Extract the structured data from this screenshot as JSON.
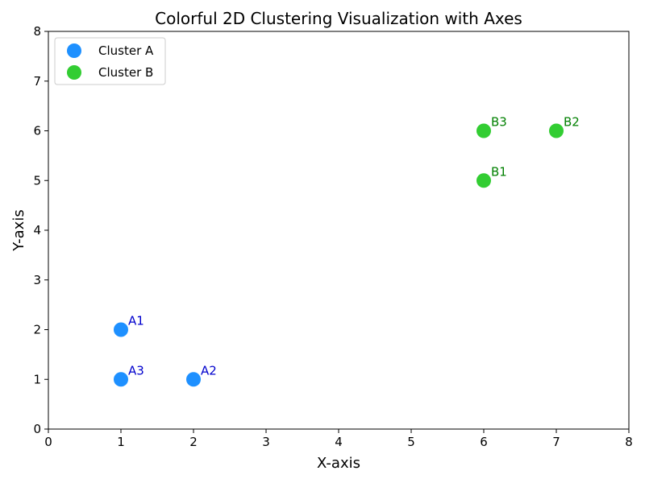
{
  "chart_data": {
    "type": "scatter",
    "title": "Colorful 2D Clustering Visualization with Axes",
    "xlabel": "X-axis",
    "ylabel": "Y-axis",
    "xlim": [
      0,
      8
    ],
    "ylim": [
      0,
      8
    ],
    "xticks": [
      "0",
      "1",
      "2",
      "3",
      "4",
      "5",
      "6",
      "7",
      "8"
    ],
    "yticks": [
      "0",
      "1",
      "2",
      "3",
      "4",
      "5",
      "6",
      "7",
      "8"
    ],
    "grid": false,
    "legend_position": "upper left",
    "series": [
      {
        "name": "Cluster A",
        "color": "#1E90FF",
        "label_color": "#0000CD",
        "points": [
          {
            "label": "A1",
            "x": 1,
            "y": 2
          },
          {
            "label": "A2",
            "x": 2,
            "y": 1
          },
          {
            "label": "A3",
            "x": 1,
            "y": 1
          }
        ]
      },
      {
        "name": "Cluster B",
        "color": "#32CD32",
        "label_color": "#008000",
        "points": [
          {
            "label": "B1",
            "x": 6,
            "y": 5
          },
          {
            "label": "B2",
            "x": 7,
            "y": 6
          },
          {
            "label": "B3",
            "x": 6,
            "y": 6
          }
        ]
      }
    ]
  }
}
